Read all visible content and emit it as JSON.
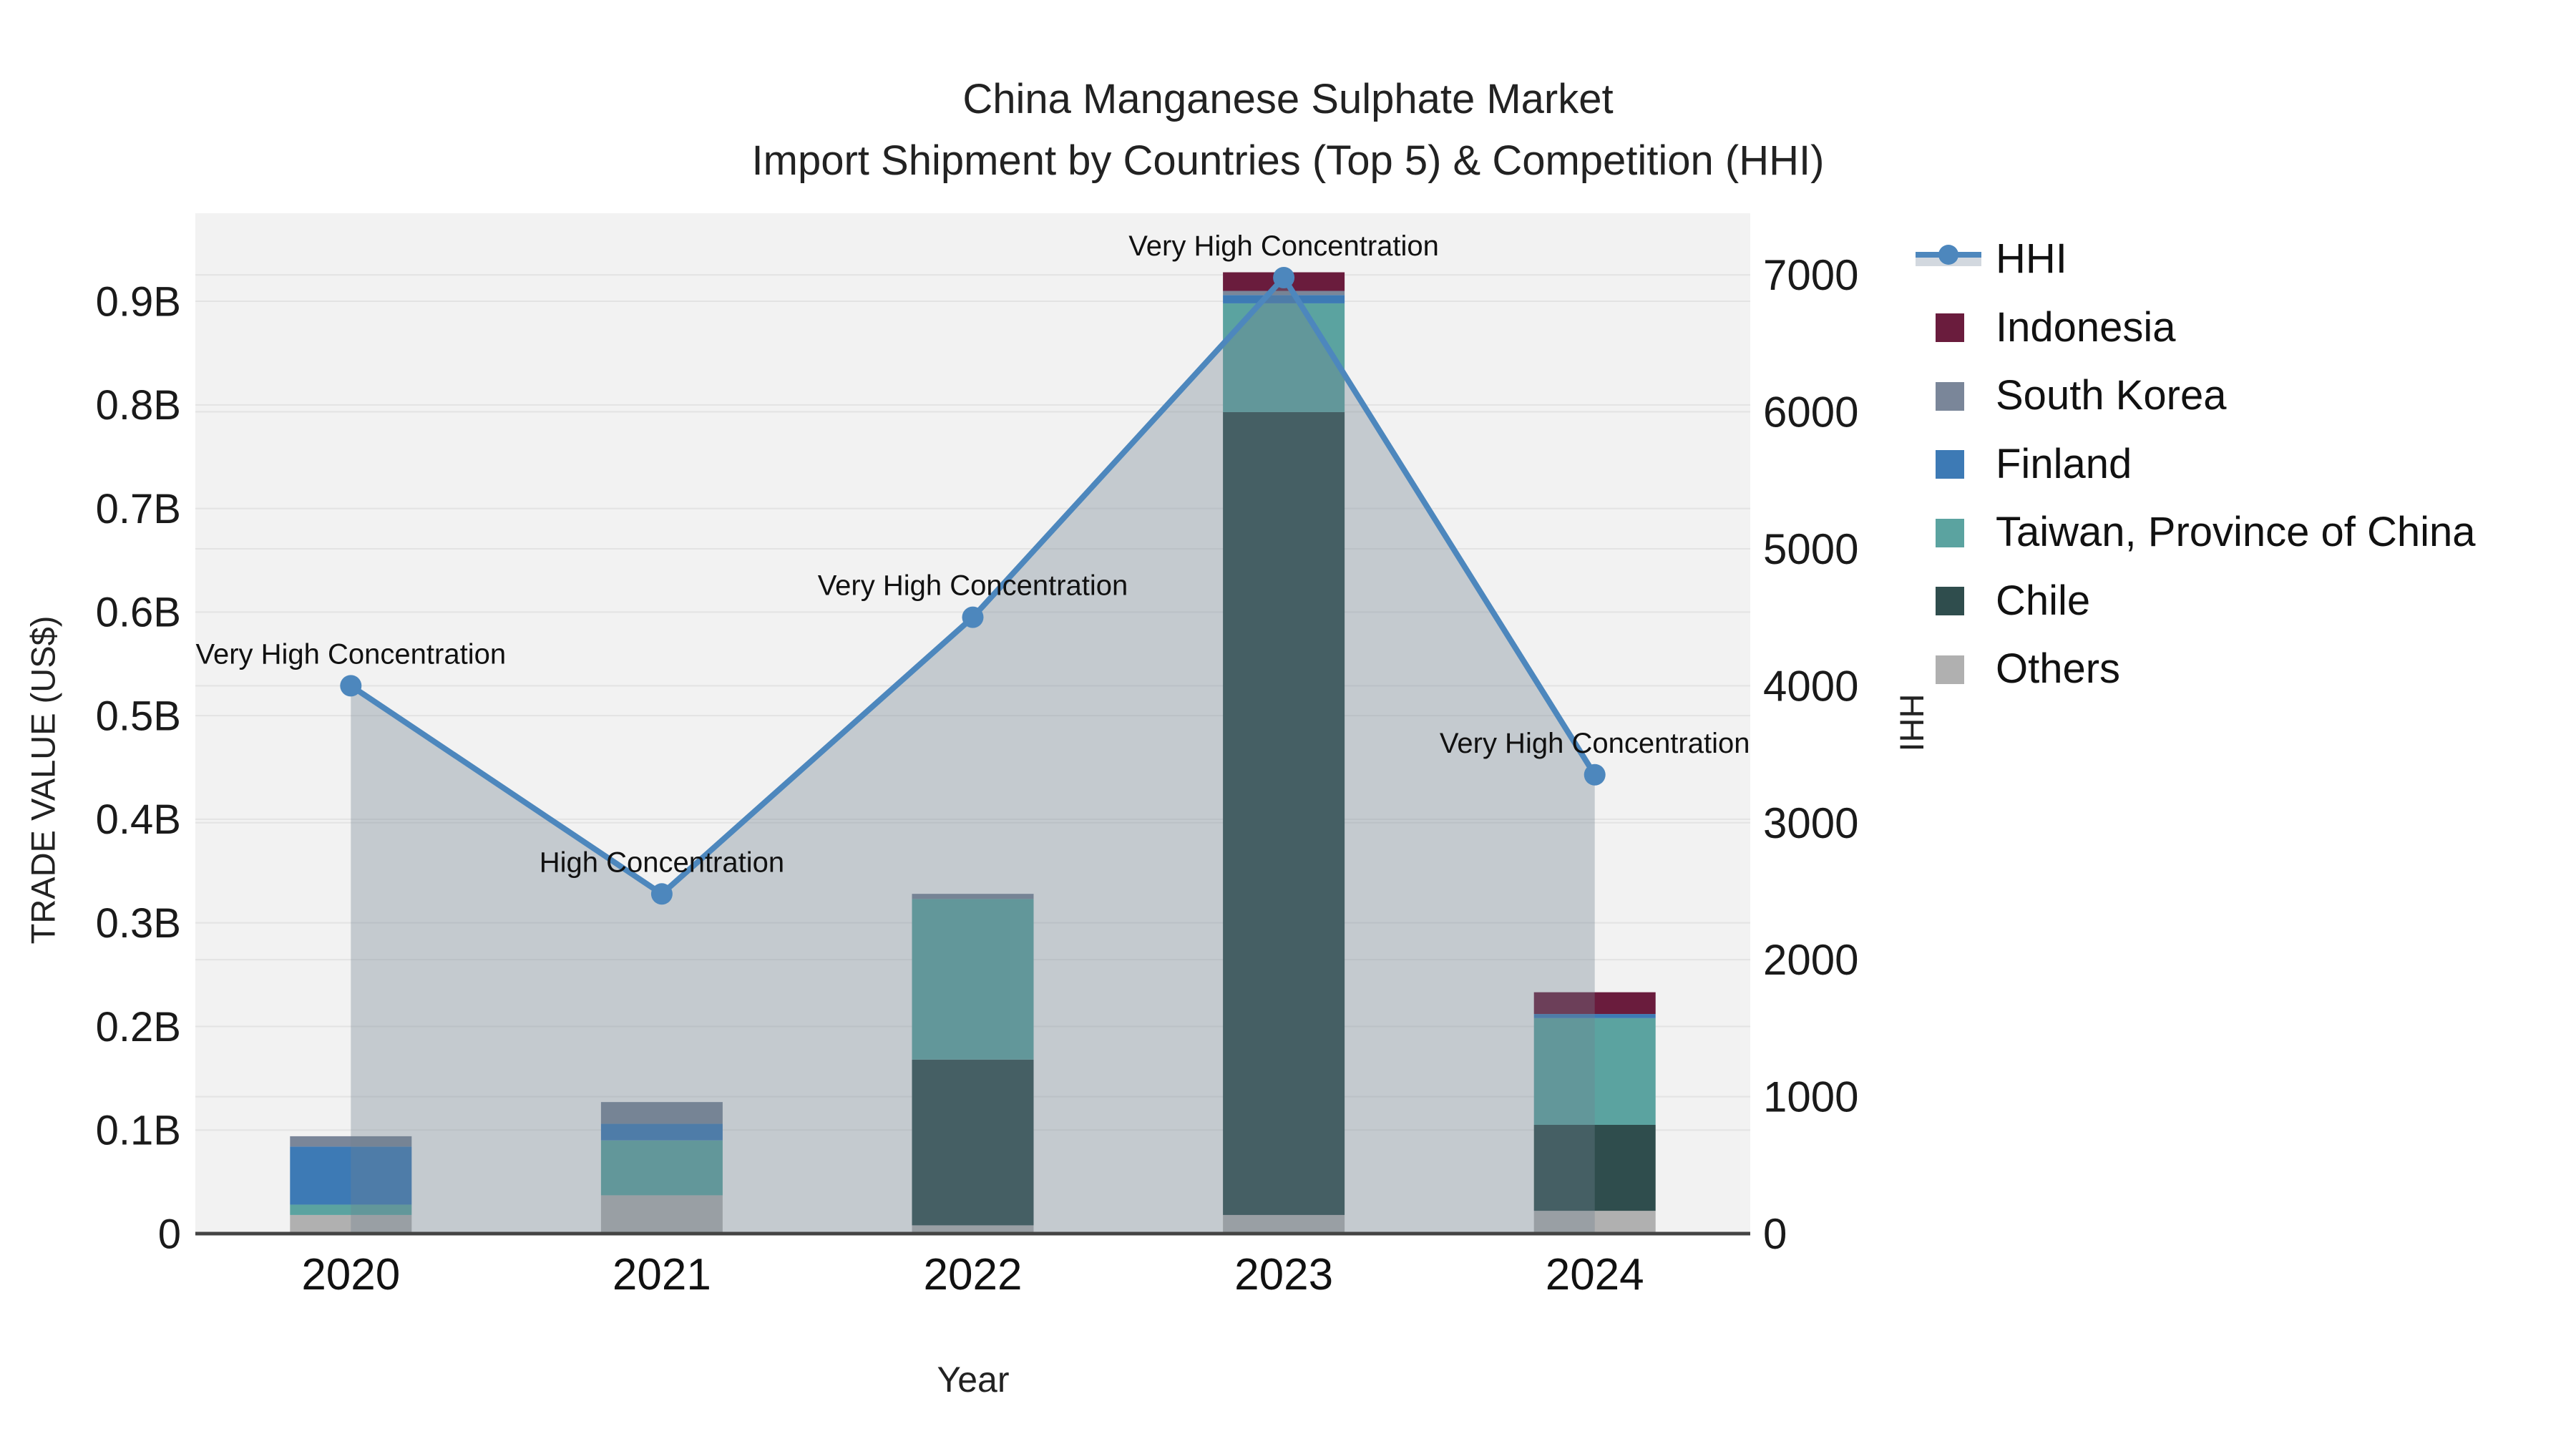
{
  "title": {
    "line1": "China Manganese Sulphate Market",
    "line2": "Import Shipment by Countries (Top 5) & Competition (HHI)"
  },
  "axes": {
    "left": {
      "title": "TRADE VALUE (US$)",
      "tick_labels": [
        "0",
        "0.1B",
        "0.2B",
        "0.3B",
        "0.4B",
        "0.5B",
        "0.6B",
        "0.7B",
        "0.8B",
        "0.9B"
      ],
      "tick_values": [
        0,
        0.1,
        0.2,
        0.3,
        0.4,
        0.5,
        0.6,
        0.7,
        0.8,
        0.9
      ],
      "max": 0.985
    },
    "right": {
      "title": "HHI",
      "tick_labels": [
        "0",
        "1000",
        "2000",
        "3000",
        "4000",
        "5000",
        "6000",
        "7000"
      ],
      "tick_values": [
        0,
        1000,
        2000,
        3000,
        4000,
        5000,
        6000,
        7000
      ],
      "max": 7450
    },
    "x": {
      "title": "Year"
    }
  },
  "legend": {
    "items": [
      {
        "label": "HHI",
        "glyph": "line-area"
      },
      {
        "label": "Indonesia",
        "glyph": "square",
        "color": "#6a1c3d"
      },
      {
        "label": "South Korea",
        "glyph": "square",
        "color": "#7a8699"
      },
      {
        "label": "Finland",
        "glyph": "square",
        "color": "#3d7ab5"
      },
      {
        "label": "Taiwan, Province of China",
        "glyph": "square",
        "color": "#5ba3a0"
      },
      {
        "label": "Chile",
        "glyph": "square",
        "color": "#2f4d4d"
      },
      {
        "label": "Others",
        "glyph": "square",
        "color": "#b0b0b0"
      }
    ]
  },
  "chart_data": {
    "type": "bar+line",
    "categories": [
      "2020",
      "2021",
      "2022",
      "2023",
      "2024"
    ],
    "bar_value_unit": "billion US$ (left axis)",
    "stack_order": "bottom to top",
    "series": [
      {
        "name": "Others",
        "color": "#b0b0b0",
        "values": [
          0.018,
          0.037,
          0.008,
          0.018,
          0.022
        ]
      },
      {
        "name": "Chile",
        "color": "#2f4d4d",
        "values": [
          0,
          0,
          0.16,
          0.775,
          0.083
        ]
      },
      {
        "name": "Taiwan, Province of China",
        "color": "#5ba3a0",
        "values": [
          0.01,
          0.053,
          0.155,
          0.105,
          0.103
        ]
      },
      {
        "name": "Finland",
        "color": "#3d7ab5",
        "values": [
          0.056,
          0.016,
          0,
          0.008,
          0.004
        ]
      },
      {
        "name": "South Korea",
        "color": "#7a8699",
        "values": [
          0.01,
          0.021,
          0.005,
          0.004,
          0
        ]
      },
      {
        "name": "Indonesia",
        "color": "#6a1c3d",
        "values": [
          0,
          0,
          0,
          0.018,
          0.021
        ]
      }
    ],
    "line": {
      "name": "HHI",
      "color": "#4d87bd",
      "area_fill": "rgba(112,128,144,0.35)",
      "values": [
        4000,
        2480,
        4500,
        6980,
        3350
      ],
      "axis": "right"
    },
    "annotations": [
      {
        "category": "2020",
        "text": "Very High Concentration"
      },
      {
        "category": "2021",
        "text": "High Concentration"
      },
      {
        "category": "2022",
        "text": "Very High Concentration"
      },
      {
        "category": "2023",
        "text": "Very High Concentration"
      },
      {
        "category": "2024",
        "text": "Very High Concentration"
      }
    ],
    "style": {
      "plot_background": "#f2f2f2",
      "gridline_color": "#e3e3e3",
      "axis_line_color": "#444444",
      "legend_position": "right",
      "grid": true
    }
  }
}
